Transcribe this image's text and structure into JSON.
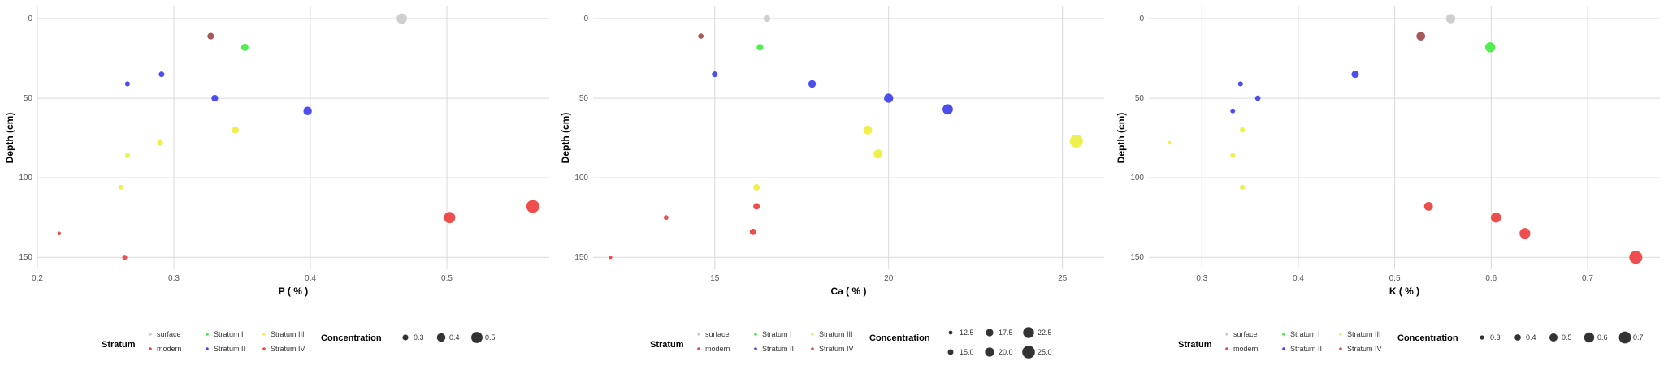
{
  "colors": {
    "surface": "#cccccc",
    "modern": "#ee4444",
    "Stratum I": "#44ee44",
    "Stratum II": "#4444ee",
    "Stratum III": "#eeee44",
    "Stratum IV": "#ee4444",
    "Stratum II dark": "#a05050"
  },
  "legend": {
    "stratum_title": "Stratum",
    "concentration_title": "Concentration",
    "strata": [
      "surface",
      "modern",
      "Stratum I",
      "Stratum II",
      "Stratum III",
      "Stratum IV"
    ]
  },
  "chart_data": [
    {
      "type": "scatter",
      "xlabel": "P ( % )",
      "ylabel": "Depth (cm)",
      "xlim": [
        0.2,
        0.575
      ],
      "ylim": [
        0,
        155
      ],
      "y_reversed": true,
      "xticks": [
        "0.2",
        "0.3",
        "0.4",
        "0.5"
      ],
      "xtick_values": [
        0.2,
        0.3,
        0.4,
        0.5
      ],
      "yticks": [
        "0",
        "50",
        "100",
        "150"
      ],
      "ytick_values": [
        0,
        50,
        100,
        150
      ],
      "size_legend": [
        "0.3",
        "0.4",
        "0.5"
      ],
      "size_legend_values": [
        0.3,
        0.4,
        0.5
      ],
      "size_range": [
        0.215,
        0.565
      ],
      "points": [
        {
          "x": 0.467,
          "y": 0,
          "stratum": "surface"
        },
        {
          "x": 0.327,
          "y": 11,
          "stratum": "Stratum II dark"
        },
        {
          "x": 0.352,
          "y": 18,
          "stratum": "Stratum I"
        },
        {
          "x": 0.291,
          "y": 35,
          "stratum": "Stratum II"
        },
        {
          "x": 0.266,
          "y": 41,
          "stratum": "Stratum II"
        },
        {
          "x": 0.33,
          "y": 50,
          "stratum": "Stratum II"
        },
        {
          "x": 0.398,
          "y": 58,
          "stratum": "Stratum II"
        },
        {
          "x": 0.345,
          "y": 70,
          "stratum": "Stratum III"
        },
        {
          "x": 0.29,
          "y": 78,
          "stratum": "Stratum III"
        },
        {
          "x": 0.266,
          "y": 86,
          "stratum": "Stratum III"
        },
        {
          "x": 0.261,
          "y": 106,
          "stratum": "Stratum III"
        },
        {
          "x": 0.563,
          "y": 118,
          "stratum": "Stratum IV"
        },
        {
          "x": 0.502,
          "y": 125,
          "stratum": "Stratum IV"
        },
        {
          "x": 0.216,
          "y": 135,
          "stratum": "modern"
        },
        {
          "x": 0.264,
          "y": 150,
          "stratum": "Stratum IV"
        }
      ]
    },
    {
      "type": "scatter",
      "xlabel": "Ca ( % )",
      "ylabel": "Depth (cm)",
      "xlim": [
        11.5,
        26.2
      ],
      "ylim": [
        0,
        155
      ],
      "y_reversed": true,
      "xticks": [
        "15",
        "20",
        "25"
      ],
      "xtick_values": [
        15,
        20,
        25
      ],
      "yticks": [
        "0",
        "50",
        "100",
        "150"
      ],
      "ytick_values": [
        0,
        50,
        100,
        150
      ],
      "size_legend": [
        "12.5",
        "15.0",
        "17.5",
        "20.0",
        "22.5",
        "25.0"
      ],
      "size_legend_values": [
        12.5,
        15.0,
        17.5,
        20.0,
        22.5,
        25.0
      ],
      "size_range": [
        12.0,
        25.5
      ],
      "points": [
        {
          "x": 16.5,
          "y": 0,
          "stratum": "surface"
        },
        {
          "x": 14.6,
          "y": 11,
          "stratum": "Stratum II dark"
        },
        {
          "x": 16.3,
          "y": 18,
          "stratum": "Stratum I"
        },
        {
          "x": 15.0,
          "y": 35,
          "stratum": "Stratum II"
        },
        {
          "x": 17.8,
          "y": 41,
          "stratum": "Stratum II"
        },
        {
          "x": 20.0,
          "y": 50,
          "stratum": "Stratum II"
        },
        {
          "x": 21.7,
          "y": 57,
          "stratum": "Stratum II"
        },
        {
          "x": 19.4,
          "y": 70,
          "stratum": "Stratum III"
        },
        {
          "x": 25.4,
          "y": 77,
          "stratum": "Stratum III"
        },
        {
          "x": 19.7,
          "y": 85,
          "stratum": "Stratum III"
        },
        {
          "x": 16.2,
          "y": 106,
          "stratum": "Stratum III"
        },
        {
          "x": 16.2,
          "y": 118,
          "stratum": "Stratum IV"
        },
        {
          "x": 13.6,
          "y": 125,
          "stratum": "Stratum IV"
        },
        {
          "x": 16.1,
          "y": 134,
          "stratum": "Stratum IV"
        },
        {
          "x": 12.0,
          "y": 150,
          "stratum": "modern"
        }
      ]
    },
    {
      "type": "scatter",
      "xlabel": "K ( % )",
      "ylabel": "Depth (cm)",
      "xlim": [
        0.245,
        0.775
      ],
      "ylim": [
        0,
        155
      ],
      "y_reversed": true,
      "xticks": [
        "0.3",
        "0.4",
        "0.5",
        "0.6",
        "0.7"
      ],
      "xtick_values": [
        0.3,
        0.4,
        0.5,
        0.6,
        0.7
      ],
      "yticks": [
        "0",
        "50",
        "100",
        "150"
      ],
      "ytick_values": [
        0,
        50,
        100,
        150
      ],
      "size_legend": [
        "0.3",
        "0.4",
        "0.5",
        "0.6",
        "0.7"
      ],
      "size_legend_values": [
        0.3,
        0.4,
        0.5,
        0.6,
        0.7
      ],
      "size_range": [
        0.265,
        0.75
      ],
      "points": [
        {
          "x": 0.558,
          "y": 0,
          "stratum": "surface"
        },
        {
          "x": 0.527,
          "y": 11,
          "stratum": "Stratum II dark"
        },
        {
          "x": 0.599,
          "y": 18,
          "stratum": "Stratum I"
        },
        {
          "x": 0.459,
          "y": 35,
          "stratum": "Stratum II"
        },
        {
          "x": 0.34,
          "y": 41,
          "stratum": "Stratum II"
        },
        {
          "x": 0.358,
          "y": 50,
          "stratum": "Stratum II"
        },
        {
          "x": 0.332,
          "y": 58,
          "stratum": "Stratum II"
        },
        {
          "x": 0.342,
          "y": 70,
          "stratum": "Stratum III"
        },
        {
          "x": 0.266,
          "y": 78,
          "stratum": "Stratum III"
        },
        {
          "x": 0.332,
          "y": 86,
          "stratum": "Stratum III"
        },
        {
          "x": 0.342,
          "y": 106,
          "stratum": "Stratum III"
        },
        {
          "x": 0.535,
          "y": 118,
          "stratum": "Stratum IV"
        },
        {
          "x": 0.605,
          "y": 125,
          "stratum": "Stratum IV"
        },
        {
          "x": 0.635,
          "y": 135,
          "stratum": "Stratum IV"
        },
        {
          "x": 0.75,
          "y": 150,
          "stratum": "Stratum IV"
        }
      ]
    }
  ]
}
